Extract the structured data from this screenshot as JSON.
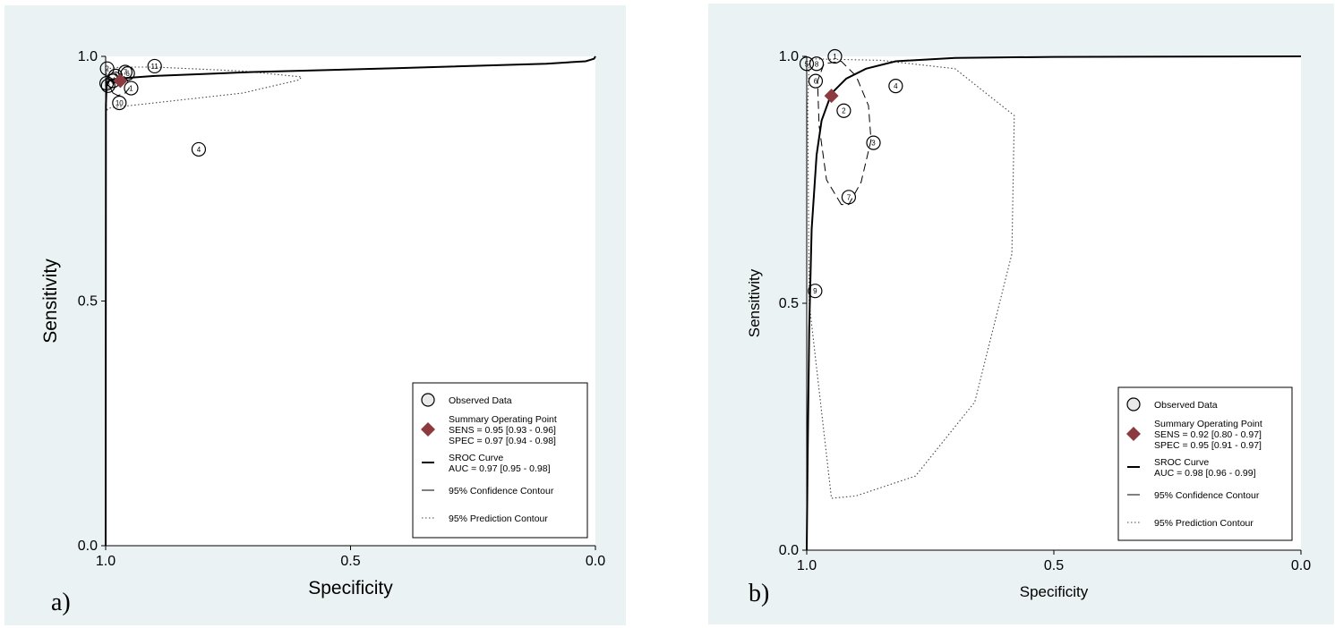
{
  "chart_data": [
    {
      "type": "scatter",
      "panel_label": "a)",
      "xlabel": "Specificity",
      "ylabel": "Sensitivity",
      "xlim": [
        1.0,
        0.0
      ],
      "ylim": [
        0.0,
        1.0
      ],
      "x_ticks": [
        "1.0",
        "0.5",
        "0.0"
      ],
      "y_ticks": [
        "0.0",
        "0.5",
        "1.0"
      ],
      "observed": [
        {
          "id": "1",
          "spec": 0.948,
          "sens": 0.935
        },
        {
          "id": "2",
          "spec": 0.997,
          "sens": 0.975
        },
        {
          "id": "3",
          "spec": 0.98,
          "sens": 0.96
        },
        {
          "id": "5",
          "spec": 0.998,
          "sens": 0.945
        },
        {
          "id": "6",
          "spec": 0.955,
          "sens": 0.965
        },
        {
          "id": "7",
          "spec": 0.96,
          "sens": 0.968
        },
        {
          "id": "8",
          "spec": 0.995,
          "sens": 0.94
        },
        {
          "id": "9",
          "spec": 0.985,
          "sens": 0.95
        },
        {
          "id": "10",
          "spec": 0.972,
          "sens": 0.905
        },
        {
          "id": "11",
          "spec": 0.9,
          "sens": 0.98
        },
        {
          "id": "4",
          "spec": 0.81,
          "sens": 0.81
        }
      ],
      "summary_point": {
        "spec": 0.97,
        "sens": 0.95
      },
      "sroc_curve": [
        [
          1.0,
          0.0
        ],
        [
          0.9995,
          0.9
        ],
        [
          0.998,
          0.945
        ],
        [
          0.99,
          0.952
        ],
        [
          0.97,
          0.955
        ],
        [
          0.9,
          0.96
        ],
        [
          0.7,
          0.968
        ],
        [
          0.4,
          0.976
        ],
        [
          0.1,
          0.985
        ],
        [
          0.02,
          0.99
        ],
        [
          0.003,
          0.995
        ],
        [
          0.0,
          1.0
        ]
      ],
      "confidence_contour": [
        [
          0.985,
          0.925
        ],
        [
          0.975,
          0.92
        ],
        [
          0.96,
          0.925
        ],
        [
          0.952,
          0.935
        ],
        [
          0.955,
          0.95
        ],
        [
          0.965,
          0.962
        ],
        [
          0.978,
          0.968
        ],
        [
          0.99,
          0.965
        ],
        [
          0.995,
          0.955
        ],
        [
          0.993,
          0.94
        ],
        [
          0.985,
          0.925
        ]
      ],
      "prediction_contour": [
        [
          0.998,
          0.89
        ],
        [
          0.99,
          0.895
        ],
        [
          0.9,
          0.905
        ],
        [
          0.72,
          0.925
        ],
        [
          0.605,
          0.952
        ],
        [
          0.6,
          0.958
        ],
        [
          0.72,
          0.97
        ],
        [
          0.9,
          0.978
        ],
        [
          0.97,
          0.978
        ],
        [
          0.995,
          0.975
        ],
        [
          1.0,
          0.96
        ],
        [
          0.999,
          0.92
        ],
        [
          0.998,
          0.89
        ]
      ],
      "legend": {
        "placement": "bottom-right",
        "items": [
          {
            "kind": "circle",
            "text": [
              "Observed Data"
            ]
          },
          {
            "kind": "diamond",
            "text": [
              "Summary Operating Point",
              "SENS = 0.95 [0.93 - 0.96]",
              "SPEC = 0.97 [0.94 - 0.98]"
            ]
          },
          {
            "kind": "solid",
            "text": [
              "SROC Curve",
              "AUC = 0.97 [0.95 - 0.98]"
            ]
          },
          {
            "kind": "dashed",
            "text": [
              "95% Confidence Contour"
            ]
          },
          {
            "kind": "dotted",
            "text": [
              "95% Prediction Contour"
            ]
          }
        ]
      }
    },
    {
      "type": "scatter",
      "panel_label": "b)",
      "xlabel": "Specificity",
      "ylabel": "Sensitivity",
      "xlim": [
        1.0,
        0.0
      ],
      "ylim": [
        0.0,
        1.0
      ],
      "x_ticks": [
        "1.0",
        "0.5",
        "0.0"
      ],
      "y_ticks": [
        "0.0",
        "0.5",
        "1.0"
      ],
      "observed": [
        {
          "id": "1",
          "spec": 0.943,
          "sens": 1.0
        },
        {
          "id": "5",
          "spec": 1.0,
          "sens": 0.985
        },
        {
          "id": "8",
          "spec": 0.98,
          "sens": 0.985
        },
        {
          "id": "6",
          "spec": 0.982,
          "sens": 0.95
        },
        {
          "id": "4",
          "spec": 0.82,
          "sens": 0.94
        },
        {
          "id": "2",
          "spec": 0.925,
          "sens": 0.89
        },
        {
          "id": "3",
          "spec": 0.865,
          "sens": 0.825
        },
        {
          "id": "7",
          "spec": 0.915,
          "sens": 0.715
        },
        {
          "id": "9",
          "spec": 0.983,
          "sens": 0.525
        }
      ],
      "summary_point": {
        "spec": 0.95,
        "sens": 0.92
      },
      "sroc_curve": [
        [
          1.0,
          0.0
        ],
        [
          0.998,
          0.2
        ],
        [
          0.995,
          0.45
        ],
        [
          0.99,
          0.65
        ],
        [
          0.98,
          0.8
        ],
        [
          0.97,
          0.87
        ],
        [
          0.95,
          0.925
        ],
        [
          0.92,
          0.955
        ],
        [
          0.88,
          0.975
        ],
        [
          0.82,
          0.99
        ],
        [
          0.7,
          0.997
        ],
        [
          0.5,
          0.999
        ],
        [
          0.0,
          1.0
        ]
      ],
      "confidence_contour": [
        [
          0.93,
          0.7
        ],
        [
          0.96,
          0.75
        ],
        [
          0.975,
          0.86
        ],
        [
          0.978,
          0.95
        ],
        [
          0.965,
          0.985
        ],
        [
          0.93,
          0.99
        ],
        [
          0.9,
          0.96
        ],
        [
          0.875,
          0.9
        ],
        [
          0.87,
          0.83
        ],
        [
          0.89,
          0.745
        ],
        [
          0.915,
          0.7
        ],
        [
          0.93,
          0.7
        ]
      ],
      "prediction_contour": [
        [
          0.995,
          0.99
        ],
        [
          0.99,
          0.995
        ],
        [
          0.85,
          0.992
        ],
        [
          0.7,
          0.975
        ],
        [
          0.58,
          0.88
        ],
        [
          0.585,
          0.6
        ],
        [
          0.66,
          0.3
        ],
        [
          0.78,
          0.15
        ],
        [
          0.9,
          0.11
        ],
        [
          0.95,
          0.105
        ],
        [
          0.995,
          0.5
        ],
        [
          0.998,
          0.9
        ],
        [
          0.995,
          0.99
        ]
      ],
      "legend": {
        "placement": "bottom-right",
        "items": [
          {
            "kind": "circle",
            "text": [
              "Observed Data"
            ]
          },
          {
            "kind": "diamond",
            "text": [
              "Summary Operating Point",
              "SENS = 0.92 [0.80 - 0.97]",
              "SPEC = 0.95 [0.91 - 0.97]"
            ]
          },
          {
            "kind": "solid",
            "text": [
              "SROC Curve",
              "AUC = 0.98 [0.96 - 0.99]"
            ]
          },
          {
            "kind": "dashed",
            "text": [
              "95% Confidence Contour"
            ]
          },
          {
            "kind": "dotted",
            "text": [
              "95% Prediction Contour"
            ]
          }
        ]
      }
    }
  ],
  "colors": {
    "panel_bg": "#eaf2f3",
    "plot_bg": "#ffffff",
    "summary": "#8b3a3f",
    "ink": "#000000"
  }
}
